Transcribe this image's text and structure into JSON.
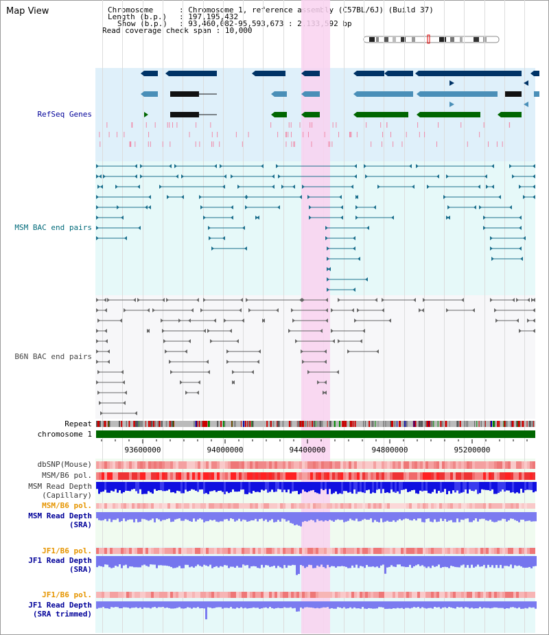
{
  "title": "Map View",
  "info": {
    "chromosome_key": "Chromosome",
    "chromosome_val": ": Chromosome 1, reference assembly (C57BL/6J) (Build 37)",
    "length_key": "Length (b.p.)",
    "length_val": ": 197,195,432",
    "show_key": "Show (b.p.)",
    "show_val": ": 93,460,082-95,593,673 : 2,133,592 bp",
    "coverage_key": "Read coverage check span",
    "coverage_val": ": 10,000"
  },
  "tracks": {
    "refseq": "RefSeq Genes",
    "msm_bac": "MSM BAC end pairs",
    "b6n_bac": "B6N BAC end pairs",
    "repeat": "Repeat",
    "chromosome": "chromosome 1",
    "dbsnp": "dbSNP(Mouse)",
    "msm_b6_pol": "MSM/B6 pol.",
    "msm_depth_cap_1": "MSM Read Depth",
    "msm_depth_cap_2": "(Capillary)",
    "msm_b6_pol_2": "MSM/B6 pol.",
    "msm_depth_sra_1": "MSM Read Depth",
    "msm_depth_sra_2": "(SRA)",
    "jf1_b6_pol": "JF1/B6 pol.",
    "jf1_depth_1": "JF1 Read Depth",
    "jf1_depth_2": "(SRA)",
    "jf1_b6_pol_2": "JF1/B6 pol.",
    "jf1_depth_trim_1": "JF1 Read Depth",
    "jf1_depth_trim_2": "(SRA trimmed)"
  },
  "axis": {
    "ticks": [
      "93600000",
      "94000000",
      "94400000",
      "94800000",
      "95200000"
    ]
  },
  "colors": {
    "refseq_bg": "#dff0fa",
    "msm_bg": "#e6f9f9",
    "b6n_bg": "#f7f7f9",
    "highlight": "#f9d2f0",
    "gene_dark": "#003366",
    "gene_mid": "#4a8fb8",
    "gene_green": "#006600",
    "msm_line": "#1a6e8c",
    "b6n_line": "#666666",
    "chromosome": "#006600",
    "sra_blue": "#7b7bf0",
    "cap_blue": "#1010e0"
  }
}
